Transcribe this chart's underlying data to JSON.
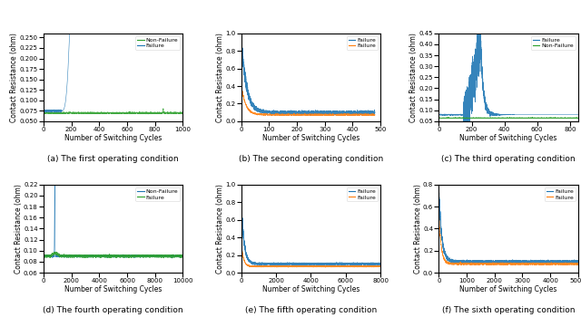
{
  "panels": [
    {
      "title": "(a) The first operating condition",
      "ylabel": "Contact Resistance (ohm)",
      "xlabel": "Number of Switching Cycles",
      "xlim": [
        0,
        1000
      ],
      "ylim": [
        0.05,
        0.26
      ],
      "yticks": [
        0.05,
        0.075,
        0.1,
        0.125,
        0.15,
        0.175,
        0.2,
        0.225,
        0.25
      ],
      "legend": [
        {
          "label": "Non-Failure",
          "color": "#2ca02c"
        },
        {
          "label": "Failure",
          "color": "#1f77b4"
        }
      ]
    },
    {
      "title": "(b) The second operating condition",
      "ylabel": "Contact Resistance (ohm)",
      "xlabel": "Number of Switching Cycles",
      "xlim": [
        0,
        500
      ],
      "ylim": [
        0.0,
        1.0
      ],
      "yticks": [
        0.0,
        0.2,
        0.4,
        0.6,
        0.8,
        1.0
      ],
      "legend": [
        {
          "label": "Failure",
          "color": "#1f77b4"
        },
        {
          "label": "Failure",
          "color": "#ff7f0e"
        }
      ]
    },
    {
      "title": "(c) The third operating condition",
      "ylabel": "Contact Resistance (ohm)",
      "xlabel": "Number of Switching Cycles",
      "xlim": [
        0,
        850
      ],
      "ylim": [
        0.05,
        0.45
      ],
      "yticks": [
        0.05,
        0.1,
        0.15,
        0.2,
        0.25,
        0.3,
        0.35,
        0.4,
        0.45
      ],
      "legend": [
        {
          "label": "Failure",
          "color": "#1f77b4"
        },
        {
          "label": "Non-Failure",
          "color": "#2ca02c"
        }
      ]
    },
    {
      "title": "(d) The fourth operating condition",
      "ylabel": "Contact Resistance (ohm)",
      "xlabel": "Number of Switching Cycles",
      "xlim": [
        0,
        10000
      ],
      "ylim": [
        0.06,
        0.22
      ],
      "yticks": [
        0.06,
        0.08,
        0.1,
        0.12,
        0.14,
        0.16,
        0.18,
        0.2,
        0.22
      ],
      "legend": [
        {
          "label": "Non-Failure",
          "color": "#1f77b4"
        },
        {
          "label": "Failure",
          "color": "#2ca02c"
        }
      ]
    },
    {
      "title": "(e) The fifth operating condition",
      "ylabel": "Contact Resistance (ohm)",
      "xlabel": "Number of Switching Cycles",
      "xlim": [
        0,
        8000
      ],
      "ylim": [
        0.0,
        1.0
      ],
      "yticks": [
        0.0,
        0.2,
        0.4,
        0.6,
        0.8,
        1.0
      ],
      "legend": [
        {
          "label": "Failure",
          "color": "#1f77b4"
        },
        {
          "label": "Failure",
          "color": "#ff7f0e"
        }
      ]
    },
    {
      "title": "(f) The sixth operating condition",
      "ylabel": "Contact Resistance (ohm)",
      "xlabel": "Number of Switching Cycles",
      "xlim": [
        0,
        5000
      ],
      "ylim": [
        0.0,
        0.8
      ],
      "yticks": [
        0.0,
        0.2,
        0.4,
        0.6,
        0.8
      ],
      "legend": [
        {
          "label": "Failure",
          "color": "#1f77b4"
        },
        {
          "label": "Failure",
          "color": "#ff7f0e"
        }
      ]
    }
  ],
  "fig_bgcolor": "#ffffff",
  "axes_bgcolor": "#ffffff",
  "font_size": 5.5,
  "tick_font_size": 5.0,
  "legend_font_size": 4.5,
  "title_font_size": 6.5
}
